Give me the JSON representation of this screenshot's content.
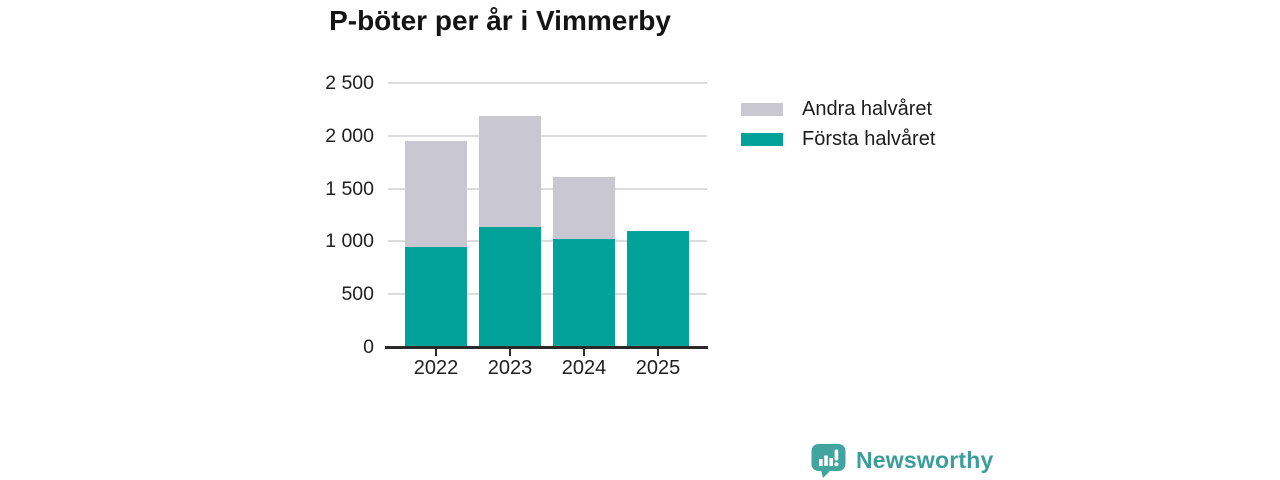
{
  "title": "P-böter per år i Vimmerby",
  "chart_data": {
    "type": "bar",
    "stacked": true,
    "title": "P-böter per år i Vimmerby",
    "categories": [
      "2022",
      "2023",
      "2024",
      "2025"
    ],
    "series": [
      {
        "name": "Första halvåret",
        "color": "#00a299",
        "values": [
          950,
          1140,
          1020,
          1100
        ]
      },
      {
        "name": "Andra halvåret",
        "color": "#c9c7d1",
        "values": [
          1000,
          1050,
          590,
          0
        ]
      }
    ],
    "totals": [
      1950,
      2190,
      1610,
      1100
    ],
    "xlabel": "",
    "ylabel": "",
    "ylim": [
      0,
      2500
    ],
    "yticks": [
      {
        "value": 0,
        "label": "0"
      },
      {
        "value": 500,
        "label": "500"
      },
      {
        "value": 1000,
        "label": "1 000"
      },
      {
        "value": 1500,
        "label": "1 500"
      },
      {
        "value": 2000,
        "label": "2 000"
      },
      {
        "value": 2500,
        "label": "2 500"
      }
    ],
    "grid": true,
    "legend_position": "right"
  },
  "legend": {
    "items": [
      {
        "label": "Andra halvåret",
        "color": "#c9c7d1"
      },
      {
        "label": "Första halvåret",
        "color": "#00a299"
      }
    ]
  },
  "footer": {
    "brand": "Newsworthy",
    "logo_icon": "newsworthy-speech-bubble-bar-chart-icon",
    "brand_color": "#3b9e9a"
  },
  "colors": {
    "first_half": "#00a299",
    "second_half": "#c9c7d1",
    "gridline": "#dcdcde",
    "axis": "#2a2a2a",
    "text": "#202020"
  }
}
